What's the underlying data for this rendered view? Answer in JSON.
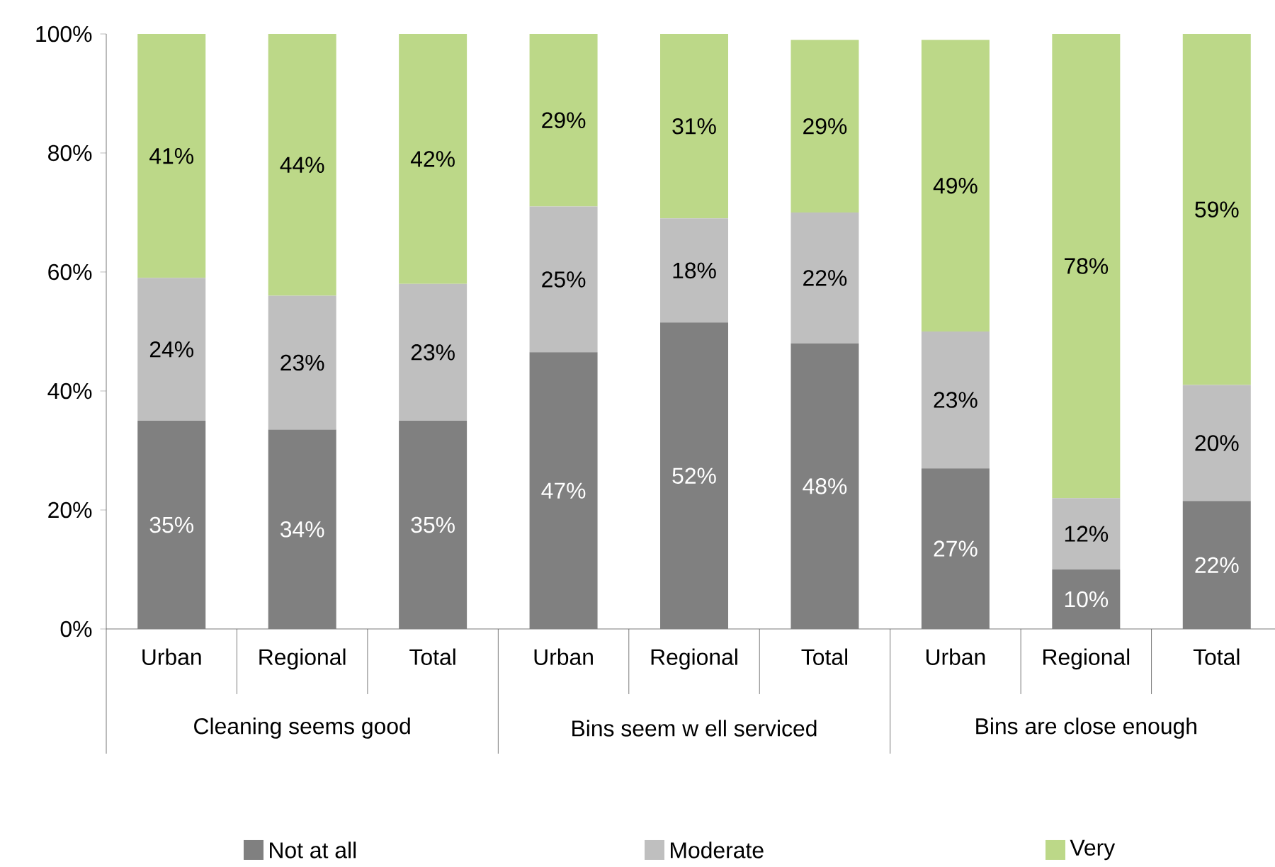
{
  "chart_data": {
    "type": "bar",
    "stacked": true,
    "categories": [
      "Urban",
      "Regional",
      "Total",
      "Urban",
      "Regional",
      "Total",
      "Urban",
      "Regional",
      "Total"
    ],
    "annotations": [
      "Cleaning seems good",
      "Bins seem w ell serviced",
      "Bins are close enough"
    ],
    "series": [
      {
        "name": "Not at all",
        "color": "#808080",
        "values": [
          35,
          33.5,
          35,
          46.5,
          51.5,
          48,
          27,
          10,
          21.5
        ],
        "value_labels": [
          "35%",
          "34%",
          "35%",
          "47%",
          "52%",
          "48%",
          "27%",
          "10%",
          "22%"
        ]
      },
      {
        "name": "Moderate",
        "color": "#bfbfbf",
        "values": [
          24,
          22.5,
          23,
          24.5,
          17.5,
          22,
          23,
          12,
          19.5
        ],
        "value_labels": [
          "24%",
          "23%",
          "23%",
          "25%",
          "18%",
          "22%",
          "23%",
          "12%",
          "20%"
        ]
      },
      {
        "name": "Very",
        "color": "#bcd888",
        "values": [
          41,
          44,
          42,
          29,
          31,
          29,
          49,
          78,
          59
        ],
        "value_labels": [
          "41%",
          "44%",
          "42%",
          "29%",
          "31%",
          "29%",
          "49%",
          "78%",
          "59%"
        ]
      }
    ],
    "ylim": [
      0,
      100
    ],
    "yticks": [
      {
        "value": 0,
        "label": "0%"
      },
      {
        "value": 20,
        "label": "20%"
      },
      {
        "value": 40,
        "label": "40%"
      },
      {
        "value": 60,
        "label": "60%"
      },
      {
        "value": 80,
        "label": "80%"
      },
      {
        "value": 100,
        "label": "100%"
      }
    ],
    "legend": "bottom"
  }
}
